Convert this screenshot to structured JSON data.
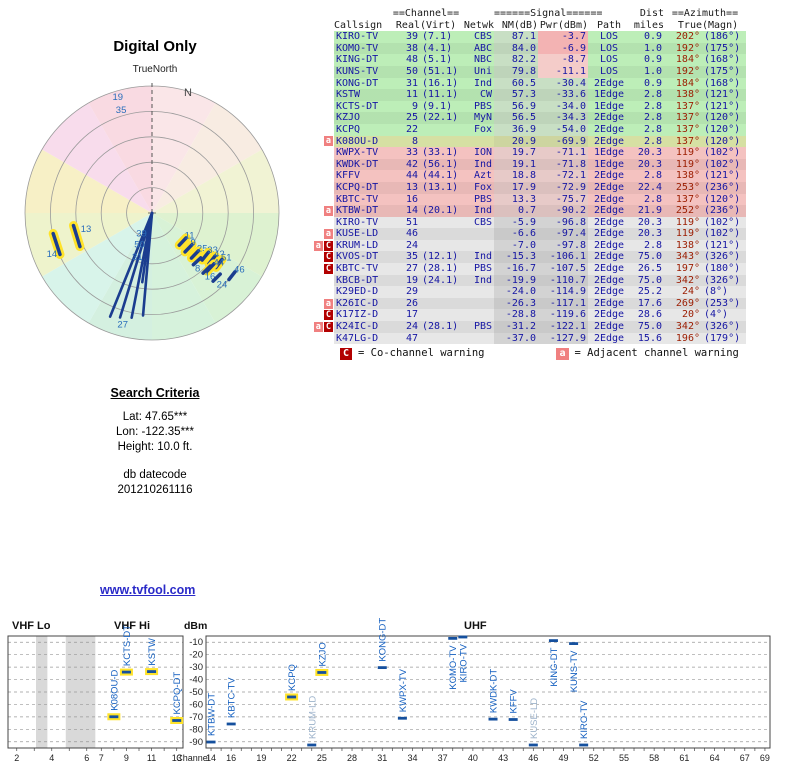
{
  "link": "www.tvfool.com",
  "colors": {
    "link": "#2a2ac8",
    "azimuth_red": "#9b1c00",
    "warn_co": "#b20000",
    "warn_adj": "#f08080",
    "bar_blue": "#15509e",
    "label_blue": "#1560c0",
    "label_faint": "#9db3cb",
    "highlight": "#ffe32a",
    "ray_blue": "#1b3d8f"
  },
  "search_criteria": {
    "heading": "Search Criteria",
    "lat": "Lat: 47.65***",
    "lon": "Lon: -122.35***",
    "height": "Height: 10.0 ft.",
    "datecode_label": "db datecode",
    "datecode": "201210261116"
  },
  "table": {
    "header": {
      "channel": "==Channel==",
      "signal": "======Signal======",
      "dist": "Dist",
      "azimuth": "==Azimuth==",
      "callsign": "Callsign",
      "real": "Real",
      "virt": "(Virt)",
      "netwk": "Netwk",
      "nm": "NM(dB)",
      "pwr": "Pwr(dBm)",
      "path": "Path",
      "miles": "miles",
      "true_": "True",
      "magn": "(Magn)"
    },
    "legend": {
      "co_chip": "C",
      "co_text": "= Co-channel warning",
      "adj_chip": "a",
      "adj_text": "= Adjacent channel warning"
    },
    "rows": [
      {
        "warn": [],
        "cs": "KIRO-TV",
        "real": "39",
        "virt": "(7.1)",
        "net": "CBS",
        "nm": "87.1",
        "pwr": "-3.7",
        "path": "LOS",
        "dist": "0.9",
        "tru": "202°",
        "magn": "(186°)",
        "band": "g",
        "pwrc": "p1"
      },
      {
        "warn": [],
        "cs": "KOMO-TV",
        "real": "38",
        "virt": "(4.1)",
        "net": "ABC",
        "nm": "84.0",
        "pwr": "-6.9",
        "path": "LOS",
        "dist": "1.0",
        "tru": "192°",
        "magn": "(175°)",
        "band": "g",
        "pwrc": "p1"
      },
      {
        "warn": [],
        "cs": "KING-DT",
        "real": "48",
        "virt": "(5.1)",
        "net": "NBC",
        "nm": "82.2",
        "pwr": "-8.7",
        "path": "LOS",
        "dist": "0.9",
        "tru": "184°",
        "magn": "(168°)",
        "band": "g",
        "pwrc": "p2"
      },
      {
        "warn": [],
        "cs": "KUNS-TV",
        "real": "50",
        "virt": "(51.1)",
        "net": "Uni",
        "nm": "79.8",
        "pwr": "-11.1",
        "path": "LOS",
        "dist": "1.0",
        "tru": "192°",
        "magn": "(175°)",
        "band": "g",
        "pwrc": "p2"
      },
      {
        "warn": [],
        "cs": "KONG-DT",
        "real": "31",
        "virt": "(16.1)",
        "net": "Ind",
        "nm": "60.5",
        "pwr": "-30.4",
        "path": "2Edge",
        "dist": "0.9",
        "tru": "184°",
        "magn": "(168°)",
        "band": "g"
      },
      {
        "warn": [],
        "cs": "KSTW",
        "real": "11",
        "virt": "(11.1)",
        "net": "CW",
        "nm": "57.3",
        "pwr": "-33.6",
        "path": "1Edge",
        "dist": "2.8",
        "tru": "138°",
        "magn": "(121°)",
        "band": "g"
      },
      {
        "warn": [],
        "cs": "KCTS-DT",
        "real": "9",
        "virt": "(9.1)",
        "net": "PBS",
        "nm": "56.9",
        "pwr": "-34.0",
        "path": "1Edge",
        "dist": "2.8",
        "tru": "137°",
        "magn": "(121°)",
        "band": "g"
      },
      {
        "warn": [],
        "cs": "KZJO",
        "real": "25",
        "virt": "(22.1)",
        "net": "MyN",
        "nm": "56.5",
        "pwr": "-34.3",
        "path": "2Edge",
        "dist": "2.8",
        "tru": "137°",
        "magn": "(120°)",
        "band": "g"
      },
      {
        "warn": [],
        "cs": "KCPQ",
        "real": "22",
        "virt": "",
        "net": "Fox",
        "nm": "36.9",
        "pwr": "-54.0",
        "path": "2Edge",
        "dist": "2.8",
        "tru": "137°",
        "magn": "(120°)",
        "band": "g"
      },
      {
        "warn": [
          "a"
        ],
        "cs": "K08OU-D",
        "real": "8",
        "virt": "",
        "net": "",
        "nm": "20.9",
        "pwr": "-69.9",
        "path": "2Edge",
        "dist": "2.8",
        "tru": "137°",
        "magn": "(120°)",
        "band": "y"
      },
      {
        "warn": [],
        "cs": "KWPX-TV",
        "real": "33",
        "virt": "(33.1)",
        "net": "ION",
        "nm": "19.7",
        "pwr": "-71.1",
        "path": "1Edge",
        "dist": "20.3",
        "tru": "119°",
        "magn": "(102°)",
        "band": "r"
      },
      {
        "warn": [],
        "cs": "KWDK-DT",
        "real": "42",
        "virt": "(56.1)",
        "net": "Ind",
        "nm": "19.1",
        "pwr": "-71.8",
        "path": "1Edge",
        "dist": "20.3",
        "tru": "119°",
        "magn": "(102°)",
        "band": "r"
      },
      {
        "warn": [],
        "cs": "KFFV",
        "real": "44",
        "virt": "(44.1)",
        "net": "Azt",
        "nm": "18.8",
        "pwr": "-72.1",
        "path": "2Edge",
        "dist": "2.8",
        "tru": "138°",
        "magn": "(121°)",
        "band": "r"
      },
      {
        "warn": [],
        "cs": "KCPQ-DT",
        "real": "13",
        "virt": "(13.1)",
        "net": "Fox",
        "nm": "17.9",
        "pwr": "-72.9",
        "path": "2Edge",
        "dist": "22.4",
        "tru": "253°",
        "magn": "(236°)",
        "band": "r"
      },
      {
        "warn": [],
        "cs": "KBTC-TV",
        "real": "16",
        "virt": "",
        "net": "PBS",
        "nm": "13.3",
        "pwr": "-75.7",
        "path": "2Edge",
        "dist": "2.8",
        "tru": "137°",
        "magn": "(120°)",
        "band": "r"
      },
      {
        "warn": [
          "a"
        ],
        "cs": "KTBW-DT",
        "real": "14",
        "virt": "(20.1)",
        "net": "Ind",
        "nm": "0.7",
        "pwr": "-90.2",
        "path": "2Edge",
        "dist": "21.9",
        "tru": "252°",
        "magn": "(236°)",
        "band": "r"
      },
      {
        "warn": [],
        "cs": "KIRO-TV",
        "real": "51",
        "virt": "",
        "net": "CBS",
        "nm": "-5.9",
        "pwr": "-96.8",
        "path": "2Edge",
        "dist": "20.3",
        "tru": "119°",
        "magn": "(102°)",
        "band": "x1"
      },
      {
        "warn": [
          "a"
        ],
        "cs": "KUSE-LD",
        "real": "46",
        "virt": "",
        "net": "",
        "nm": "-6.6",
        "pwr": "-97.4",
        "path": "2Edge",
        "dist": "20.3",
        "tru": "119°",
        "magn": "(102°)",
        "band": "x2"
      },
      {
        "warn": [
          "a",
          "C"
        ],
        "cs": "KRUM-LD",
        "real": "24",
        "virt": "",
        "net": "",
        "nm": "-7.0",
        "pwr": "-97.8",
        "path": "2Edge",
        "dist": "2.8",
        "tru": "138°",
        "magn": "(121°)",
        "band": "x1"
      },
      {
        "warn": [
          "C"
        ],
        "cs": "KVOS-DT",
        "real": "35",
        "virt": "(12.1)",
        "net": "Ind",
        "nm": "-15.3",
        "pwr": "-106.1",
        "path": "2Edge",
        "dist": "75.0",
        "tru": "343°",
        "magn": "(326°)",
        "band": "x2"
      },
      {
        "warn": [
          "C"
        ],
        "cs": "KBTC-TV",
        "real": "27",
        "virt": "(28.1)",
        "net": "PBS",
        "nm": "-16.7",
        "pwr": "-107.5",
        "path": "2Edge",
        "dist": "26.5",
        "tru": "197°",
        "magn": "(180°)",
        "band": "x1"
      },
      {
        "warn": [],
        "cs": "KBCB-DT",
        "real": "19",
        "virt": "(24.1)",
        "net": "Ind",
        "nm": "-19.9",
        "pwr": "-110.7",
        "path": "2Edge",
        "dist": "75.0",
        "tru": "342°",
        "magn": "(326°)",
        "band": "x2"
      },
      {
        "warn": [],
        "cs": "K29ED-D",
        "real": "29",
        "virt": "",
        "net": "",
        "nm": "-24.0",
        "pwr": "-114.9",
        "path": "2Edge",
        "dist": "25.2",
        "tru": "24°",
        "magn": "(8°)",
        "band": "x1"
      },
      {
        "warn": [
          "a"
        ],
        "cs": "K26IC-D",
        "real": "26",
        "virt": "",
        "net": "",
        "nm": "-26.3",
        "pwr": "-117.1",
        "path": "2Edge",
        "dist": "17.6",
        "tru": "269°",
        "magn": "(253°)",
        "band": "x2"
      },
      {
        "warn": [
          "C"
        ],
        "cs": "K17IZ-D",
        "real": "17",
        "virt": "",
        "net": "",
        "nm": "-28.8",
        "pwr": "-119.6",
        "path": "2Edge",
        "dist": "28.6",
        "tru": "20°",
        "magn": "(4°)",
        "band": "x1"
      },
      {
        "warn": [
          "a",
          "C"
        ],
        "cs": "K24IC-D",
        "real": "24",
        "virt": "(28.1)",
        "net": "PBS",
        "nm": "-31.2",
        "pwr": "-122.1",
        "path": "2Edge",
        "dist": "75.0",
        "tru": "342°",
        "magn": "(326°)",
        "band": "x2"
      },
      {
        "warn": [],
        "cs": "K47LG-D",
        "real": "47",
        "virt": "",
        "net": "",
        "nm": "-37.0",
        "pwr": "-127.9",
        "path": "2Edge",
        "dist": "15.6",
        "tru": "196°",
        "magn": "(179°)",
        "band": "x1"
      }
    ]
  },
  "chart_data": [
    {
      "type": "scatter",
      "kind": "polar-azimuth",
      "title": "Digital Only",
      "north_label": "TrueNorth",
      "compass_label": "N",
      "wedge_colors": [
        "#fae6e8",
        "#f8ece2",
        "#f1f3d4",
        "#def2d0",
        "#d8f2d6",
        "#d6f2dc",
        "#d4f0e0",
        "#d8f4ea",
        "#eef3cc",
        "#f7f0c6",
        "#f8dcec",
        "#f9dae2"
      ],
      "rays": [
        {
          "az": 202,
          "len": 0.88
        },
        {
          "az": 197,
          "len": 0.86
        },
        {
          "az": 191,
          "len": 0.84
        },
        {
          "az": 185,
          "len": 0.81
        },
        {
          "az": 188,
          "len": 0.55
        }
      ],
      "points": [
        {
          "label": "19",
          "az": 343,
          "r": 0.93,
          "ox": -5,
          "oy": 0
        },
        {
          "label": "35",
          "az": 343,
          "r": 0.84,
          "ox": -5,
          "oy": 2
        },
        {
          "label": "14",
          "az": 252,
          "r": 0.79,
          "tick": true,
          "hl": true,
          "len": 11,
          "ox": -10,
          "oy": 13
        },
        {
          "label": "13",
          "az": 253,
          "r": 0.62,
          "tick": true,
          "hl": true,
          "len": 11,
          "ox": 4,
          "oy": -4
        },
        {
          "label": "39",
          "az": 190,
          "r": 0.17,
          "ox": -12,
          "oy": 2
        },
        {
          "label": "50",
          "az": 190,
          "r": 0.26,
          "ox": -12,
          "oy": 2
        },
        {
          "label": "31",
          "az": 190,
          "r": 0.36,
          "ox": -12,
          "oy": 2
        },
        {
          "label": "27",
          "az": 193,
          "r": 0.86,
          "ox": -10,
          "oy": 8
        },
        {
          "label": "11",
          "az": 133,
          "r": 0.33,
          "tick": true,
          "hl": true,
          "ox": 2,
          "oy": -3
        },
        {
          "label": "9",
          "az": 134,
          "r": 0.4,
          "tick": true,
          "hl": true,
          "ox": 2,
          "oy": -3
        },
        {
          "label": "25",
          "az": 134,
          "r": 0.47,
          "tick": true,
          "hl": true,
          "ox": 2,
          "oy": -3
        },
        {
          "label": "33",
          "az": 129,
          "r": 0.54,
          "tick": true,
          "hl": true,
          "ox": 2,
          "oy": -3
        },
        {
          "label": "42",
          "az": 128,
          "r": 0.6,
          "tick": true,
          "hl": true,
          "ox": 2,
          "oy": -3
        },
        {
          "label": "51",
          "az": 127,
          "r": 0.66,
          "tick": true,
          "hl": true,
          "ox": 2,
          "oy": -3
        },
        {
          "label": "44",
          "az": 133,
          "r": 0.63,
          "tick": true,
          "hl": true,
          "ox": 3,
          "oy": -2
        },
        {
          "label": "8",
          "az": 137,
          "r": 0.52,
          "tick": true,
          "ox": -2,
          "oy": 10
        },
        {
          "label": "16",
          "az": 136,
          "r": 0.62,
          "tick": true,
          "ox": -2,
          "oy": 10
        },
        {
          "label": "24",
          "az": 135,
          "r": 0.72,
          "tick": true,
          "ox": 0,
          "oy": 10
        },
        {
          "label": "46",
          "az": 128,
          "r": 0.8,
          "tick": true,
          "ox": 2,
          "oy": -3
        }
      ]
    },
    {
      "type": "scatter",
      "kind": "spectrum",
      "xlabel": "Channel",
      "ylabel": "dBm",
      "ylim": [
        -95,
        -5
      ],
      "labels": {
        "vhf_lo": "VHF Lo",
        "vhf_hi": "VHF Hi",
        "uhf": "UHF",
        "dbm": "dBm",
        "channel": "Channel"
      },
      "y_ticks": [
        -10,
        -20,
        -30,
        -40,
        -50,
        -60,
        -70,
        -80,
        -90
      ],
      "left_ticks": [
        2,
        4,
        6,
        7,
        9,
        11,
        13
      ],
      "right_ticks": [
        14,
        16,
        19,
        22,
        25,
        28,
        31,
        34,
        37,
        40,
        43,
        46,
        49,
        52,
        55,
        58,
        61,
        64,
        67,
        69
      ],
      "gray_bands": [
        [
          3.6,
          4.25
        ],
        [
          5.3,
          6.99
        ]
      ],
      "stations": [
        {
          "callsign": "K08OU-D",
          "ch": 8,
          "dbm": -69.9,
          "panel": "L",
          "hl": true,
          "side": "above"
        },
        {
          "callsign": "KCTS-DT",
          "ch": 9,
          "dbm": -34.0,
          "panel": "L",
          "hl": true,
          "side": "above"
        },
        {
          "callsign": "KSTW",
          "ch": 11,
          "dbm": -33.6,
          "panel": "L",
          "hl": true,
          "side": "above"
        },
        {
          "callsign": "KCPQ-DT",
          "ch": 13,
          "dbm": -72.9,
          "panel": "L",
          "hl": true,
          "side": "above"
        },
        {
          "callsign": "KTBW-DT",
          "ch": 14,
          "dbm": -90.2,
          "panel": "R",
          "side": "above"
        },
        {
          "callsign": "KBTC-TV",
          "ch": 16,
          "dbm": -75.7,
          "panel": "R",
          "side": "above"
        },
        {
          "callsign": "KCPQ",
          "ch": 22,
          "dbm": -54.0,
          "panel": "R",
          "hl": true,
          "side": "above"
        },
        {
          "callsign": "KRUM-LD",
          "ch": 24,
          "dbm": -97.8,
          "panel": "R",
          "faint": true,
          "side": "above"
        },
        {
          "callsign": "KZJO",
          "ch": 25,
          "dbm": -34.3,
          "panel": "R",
          "hl": true,
          "side": "above"
        },
        {
          "callsign": "KONG-DT",
          "ch": 31,
          "dbm": -30.4,
          "panel": "R",
          "side": "above"
        },
        {
          "callsign": "KWPX-TV",
          "ch": 33,
          "dbm": -71.1,
          "panel": "R",
          "side": "above"
        },
        {
          "callsign": "KOMO-TV",
          "ch": 38,
          "dbm": -6.9,
          "panel": "R",
          "side": "below"
        },
        {
          "callsign": "KIRO-TV",
          "ch": 39,
          "dbm": -3.7,
          "panel": "R",
          "side": "below"
        },
        {
          "callsign": "KWDK-DT",
          "ch": 42,
          "dbm": -71.8,
          "panel": "R",
          "side": "above"
        },
        {
          "callsign": "KFFV",
          "ch": 44,
          "dbm": -72.1,
          "panel": "R",
          "side": "above"
        },
        {
          "callsign": "KUSE-LD",
          "ch": 46,
          "dbm": -97.4,
          "panel": "R",
          "faint": true,
          "side": "above"
        },
        {
          "callsign": "KING-DT",
          "ch": 48,
          "dbm": -8.7,
          "panel": "R",
          "side": "below"
        },
        {
          "callsign": "KUNS-TV",
          "ch": 50,
          "dbm": -11.1,
          "panel": "R",
          "side": "below"
        },
        {
          "callsign": "KIRO-TV",
          "ch": 51,
          "dbm": -96.8,
          "panel": "R",
          "side": "above"
        }
      ]
    }
  ]
}
